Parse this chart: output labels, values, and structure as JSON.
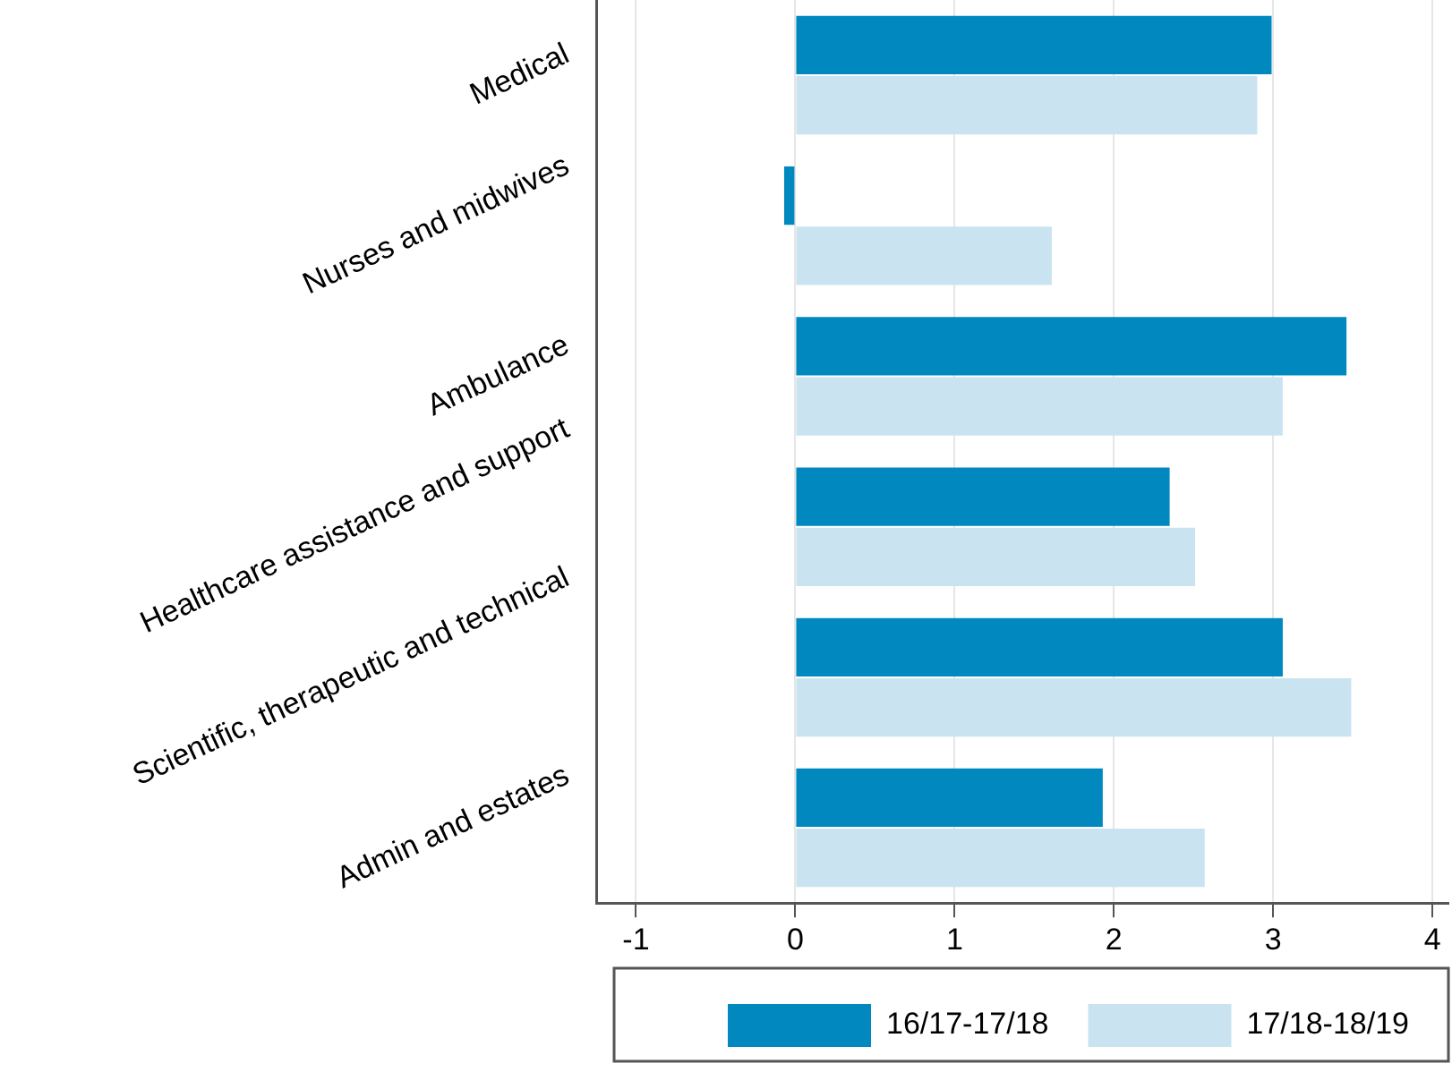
{
  "chart_data": {
    "type": "bar",
    "orientation": "horizontal",
    "categories": [
      "Medical",
      "Nurses and midwives",
      "Ambulance",
      "Healthcare assistance and support",
      "Scientific, therapeutic and technical",
      "Admin and estates"
    ],
    "series": [
      {
        "name": "16/17-17/18",
        "color": "#0088bf",
        "values": [
          2.99,
          -0.07,
          3.46,
          2.35,
          3.06,
          1.93
        ]
      },
      {
        "name": "17/18-18/19",
        "color": "#c9e4f0",
        "values": [
          2.9,
          1.61,
          3.06,
          2.51,
          3.49,
          2.57
        ]
      }
    ],
    "xlim": [
      -1.25,
      4.1
    ],
    "xticks": [
      -1,
      0,
      1,
      2,
      3,
      4
    ],
    "grid": "x",
    "legend": "bottom"
  }
}
